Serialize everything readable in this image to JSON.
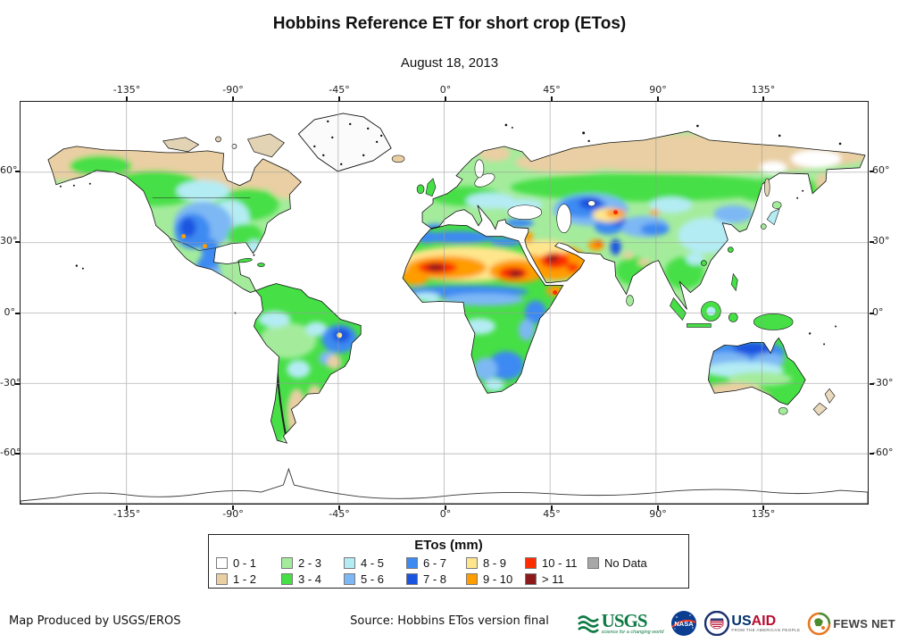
{
  "header": {
    "title": "Hobbins Reference ET for short crop (ETos)",
    "date": "August 18, 2013"
  },
  "map": {
    "x_axis_labels": [
      "-135°",
      "-90°",
      "-45°",
      "0°",
      "45°",
      "90°",
      "135°"
    ],
    "y_axis_labels": [
      "60°",
      "30°",
      "0°",
      "-30°",
      "-60°"
    ]
  },
  "legend": {
    "title": "ETos (mm)",
    "items": [
      {
        "label": "0 - 1",
        "color": "#ffffff"
      },
      {
        "label": "1 - 2",
        "color": "#e9cfa3"
      },
      {
        "label": "2 - 3",
        "color": "#a4ec9c"
      },
      {
        "label": "3 - 4",
        "color": "#46df46"
      },
      {
        "label": "4 - 5",
        "color": "#b4ecf4"
      },
      {
        "label": "5 - 6",
        "color": "#7db8f4"
      },
      {
        "label": "6 - 7",
        "color": "#3c8af2"
      },
      {
        "label": "7 - 8",
        "color": "#1a55e0"
      },
      {
        "label": "8 - 9",
        "color": "#ffe68c"
      },
      {
        "label": "9 - 10",
        "color": "#ff9c00"
      },
      {
        "label": "10 - 11",
        "color": "#fb2d00"
      },
      {
        "label": "> 11",
        "color": "#8c1a1a"
      },
      {
        "label": "No Data",
        "color": "#a8a8a8"
      }
    ]
  },
  "footer": {
    "produced_by": "Map Produced by USGS/EROS",
    "source": "Source: Hobbins ETos version final",
    "logos": {
      "usgs": {
        "text": "USGS",
        "tagline": "science for a changing world"
      },
      "nasa": {
        "text": "NASA"
      },
      "usaid": {
        "text_us": "US",
        "text_aid": "AID",
        "tagline": "FROM THE AMERICAN PEOPLE"
      },
      "fews": {
        "text": "FEWS NET"
      }
    }
  }
}
